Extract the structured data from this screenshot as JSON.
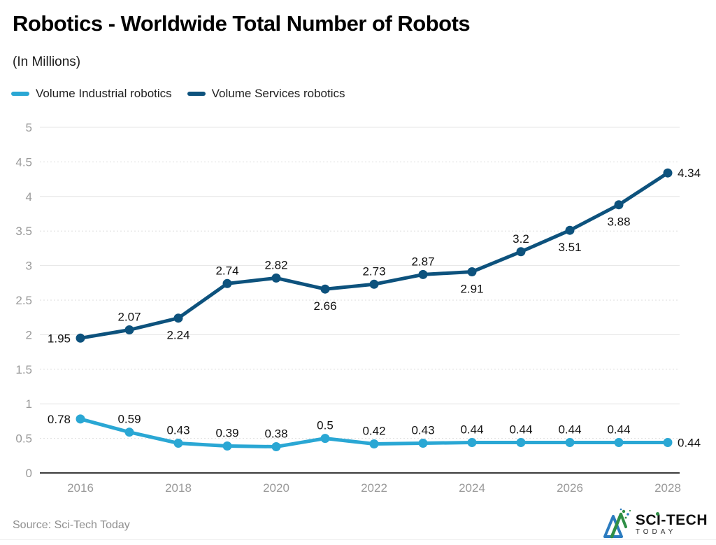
{
  "chart_data": {
    "type": "line",
    "title": "Robotics - Worldwide Total Number of Robots",
    "subtitle": "(In Millions)",
    "x": [
      2016,
      2017,
      2018,
      2019,
      2020,
      2021,
      2022,
      2023,
      2024,
      2025,
      2026,
      2027,
      2028
    ],
    "x_tick_labels": [
      "2016",
      "2018",
      "2020",
      "2022",
      "2024",
      "2026",
      "2028"
    ],
    "ylim": [
      0,
      5
    ],
    "y_tick_step": 0.5,
    "grid": true,
    "legend_position": "top",
    "series": [
      {
        "name": "Volume Industrial robotics",
        "color": "#2aa7d4",
        "values": [
          0.78,
          0.59,
          0.43,
          0.39,
          0.38,
          0.5,
          0.42,
          0.43,
          0.44,
          0.44,
          0.44,
          0.44,
          0.44
        ],
        "label_positions": [
          "left",
          "above",
          "above",
          "above",
          "above",
          "above",
          "above",
          "above",
          "above",
          "above",
          "above",
          "above",
          "right"
        ]
      },
      {
        "name": "Volume Services robotics",
        "color": "#0d527d",
        "values": [
          1.95,
          2.07,
          2.24,
          2.74,
          2.82,
          2.66,
          2.73,
          2.87,
          2.91,
          3.2,
          3.51,
          3.88,
          4.34
        ],
        "label_positions": [
          "left",
          "above",
          "below",
          "above",
          "above",
          "below",
          "above",
          "above",
          "below",
          "above",
          "below",
          "below",
          "right"
        ]
      }
    ]
  },
  "footer": {
    "source": "Source: Sci-Tech Today",
    "logo_primary": "SCI-TECH",
    "logo_secondary": "TODAY"
  },
  "colors": {
    "grid_major": "#e4e4e4",
    "grid_minor": "#dedede",
    "axis_line": "#3c3c3c",
    "tick_text": "#9a9a9a",
    "data_label_text": "#121212",
    "logo_green": "#2f8f46",
    "logo_blue": "#2b7bbf"
  }
}
